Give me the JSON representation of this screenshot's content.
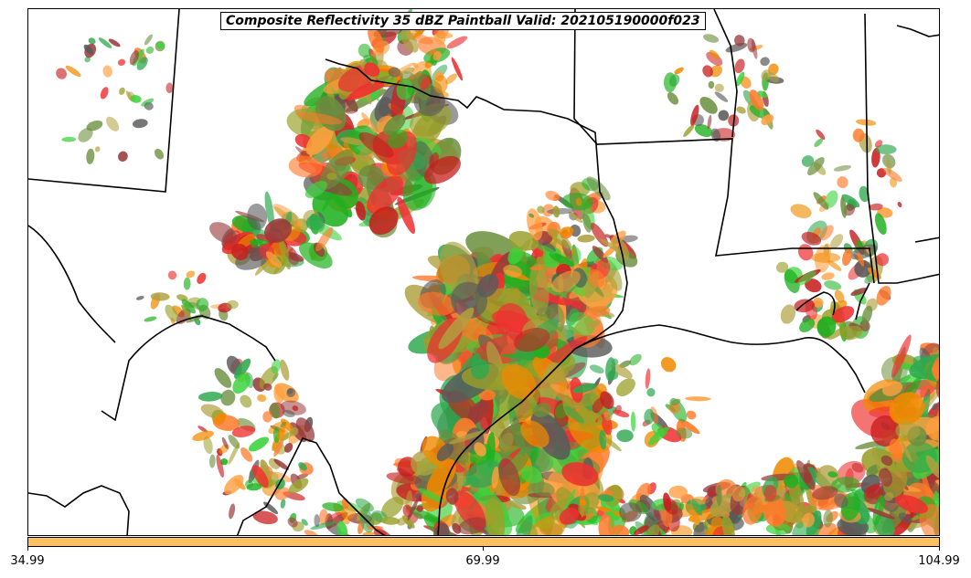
{
  "title": "Composite Reflectivity 35 dBZ Paintball Valid: 202105190000f023",
  "colors": {
    "colorbar": "#fdbf5f",
    "member_palette": [
      "#c81e1e",
      "#ee3030",
      "#9a3a3a",
      "#f08a00",
      "#ffa040",
      "#ff7a2a",
      "#3cd23c",
      "#2fa84f",
      "#6a8e3c",
      "#9aa02a",
      "#b0a040",
      "#5a5a5a",
      "#1fb01f"
    ]
  },
  "colorbar": {
    "tick_labels": [
      "34.99",
      "69.99",
      "104.99"
    ]
  }
}
